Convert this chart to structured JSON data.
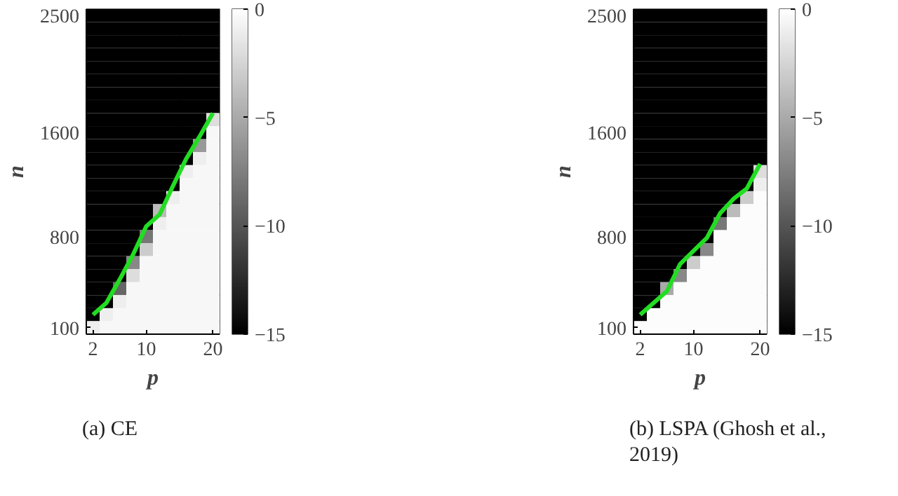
{
  "chart_data": [
    {
      "type": "heatmap",
      "xlabel": "p",
      "ylabel": "n",
      "annotations": [
        "(a) CE"
      ],
      "xlim": [
        1,
        21
      ],
      "xticks": [
        2,
        10,
        20
      ],
      "ylim": [
        50,
        2550
      ],
      "yticks": [
        100,
        800,
        1600,
        2500
      ],
      "clim": [
        -15,
        0
      ],
      "cticks": [
        0,
        -5,
        -10,
        -15
      ],
      "cells": [
        [
          -15,
          -15,
          -15,
          -15,
          -15,
          -15,
          -15,
          -15,
          -15,
          -15
        ],
        [
          -15,
          -15,
          -15,
          -15,
          -15,
          -15,
          -15,
          -15,
          -15,
          -15
        ],
        [
          -15,
          -15,
          -15,
          -15,
          -15,
          -15,
          -15,
          -15,
          -15,
          -15
        ],
        [
          -15,
          -15,
          -15,
          -15,
          -15,
          -15,
          -15,
          -15,
          -15,
          -15
        ],
        [
          -15,
          -15,
          -15,
          -15,
          -15,
          -15,
          -15,
          -15,
          -15,
          -15
        ],
        [
          -15,
          -15,
          -15,
          -15,
          -15,
          -15,
          -15,
          -15,
          -15,
          -15
        ],
        [
          -15,
          -15,
          -15,
          -15,
          -15,
          -15,
          -15,
          -15,
          -15,
          -15
        ],
        [
          -15,
          -15,
          -15,
          -15,
          -15,
          -15,
          -15,
          -15,
          -15,
          -15
        ],
        [
          -15,
          -15,
          -15,
          -15,
          -15,
          -15,
          -15,
          -15,
          -15,
          -2
        ],
        [
          -15,
          -15,
          -15,
          -15,
          -15,
          -15,
          -15,
          -15,
          -15,
          -0.5
        ],
        [
          -15,
          -15,
          -15,
          -15,
          -15,
          -15,
          -15,
          -15,
          -6,
          -0.5
        ],
        [
          -15,
          -15,
          -15,
          -15,
          -15,
          -15,
          -15,
          -15,
          -1,
          -0.5
        ],
        [
          -15,
          -15,
          -15,
          -15,
          -15,
          -15,
          -15,
          -1,
          -0.5,
          -0.5
        ],
        [
          -15,
          -15,
          -15,
          -15,
          -15,
          -15,
          -15,
          -0.5,
          -0.5,
          -0.5
        ],
        [
          -15,
          -15,
          -15,
          -15,
          -15,
          -15,
          -1,
          -0.5,
          -0.5,
          -0.5
        ],
        [
          -15,
          -15,
          -15,
          -15,
          -15,
          -4,
          -0.5,
          -0.5,
          -0.5,
          -0.5
        ],
        [
          -15,
          -15,
          -15,
          -15,
          -15,
          -1,
          -0.5,
          -0.5,
          -0.5,
          -0.5
        ],
        [
          -15,
          -15,
          -15,
          -15,
          -8,
          -0.5,
          -0.5,
          -0.5,
          -0.5,
          -0.5
        ],
        [
          -15,
          -15,
          -15,
          -15,
          -3,
          -0.5,
          -0.5,
          -0.5,
          -0.5,
          -0.5
        ],
        [
          -15,
          -15,
          -15,
          -7,
          -0.5,
          -0.5,
          -0.5,
          -0.5,
          -0.5,
          -0.5
        ],
        [
          -15,
          -15,
          -15,
          -2,
          -0.5,
          -0.5,
          -0.5,
          -0.5,
          -0.5,
          -0.5
        ],
        [
          -15,
          -15,
          -9,
          -0.5,
          -0.5,
          -0.5,
          -0.5,
          -0.5,
          -0.5,
          -0.5
        ],
        [
          -15,
          -15,
          -1,
          -0.5,
          -0.5,
          -0.5,
          -0.5,
          -0.5,
          -0.5,
          -0.5
        ],
        [
          -15,
          -1,
          -0.5,
          -0.5,
          -0.5,
          -0.5,
          -0.5,
          -0.5,
          -0.5,
          -0.5
        ],
        [
          -1,
          -0.5,
          -0.5,
          -0.5,
          -0.5,
          -0.5,
          -0.5,
          -0.5,
          -0.5,
          -0.5
        ]
      ],
      "series": [
        {
          "type": "line",
          "color": "#22dd22",
          "x": [
            2,
            4,
            6,
            8,
            10,
            12,
            14,
            16,
            18,
            20
          ],
          "values": [
            200,
            290,
            470,
            660,
            880,
            970,
            1190,
            1400,
            1570,
            1750
          ]
        }
      ]
    },
    {
      "type": "heatmap",
      "xlabel": "p",
      "ylabel": "n",
      "annotations": [
        "(b) LSPA (Ghosh et al., 2019)"
      ],
      "xlim": [
        1,
        21
      ],
      "xticks": [
        2,
        10,
        20
      ],
      "ylim": [
        50,
        2550
      ],
      "yticks": [
        100,
        800,
        1600,
        2500
      ],
      "clim": [
        -15,
        0
      ],
      "cticks": [
        0,
        -5,
        -10,
        -15
      ],
      "cells": [
        [
          -15,
          -15,
          -15,
          -15,
          -15,
          -15,
          -15,
          -15,
          -15,
          -15
        ],
        [
          -15,
          -15,
          -15,
          -15,
          -15,
          -15,
          -15,
          -15,
          -15,
          -15
        ],
        [
          -15,
          -15,
          -15,
          -15,
          -15,
          -15,
          -15,
          -15,
          -15,
          -15
        ],
        [
          -15,
          -15,
          -15,
          -15,
          -15,
          -15,
          -15,
          -15,
          -15,
          -15
        ],
        [
          -15,
          -15,
          -15,
          -15,
          -15,
          -15,
          -15,
          -15,
          -15,
          -15
        ],
        [
          -15,
          -15,
          -15,
          -15,
          -15,
          -15,
          -15,
          -15,
          -15,
          -15
        ],
        [
          -15,
          -15,
          -15,
          -15,
          -15,
          -15,
          -15,
          -15,
          -15,
          -15
        ],
        [
          -15,
          -15,
          -15,
          -15,
          -15,
          -15,
          -15,
          -15,
          -15,
          -15
        ],
        [
          -15,
          -15,
          -15,
          -15,
          -15,
          -15,
          -15,
          -15,
          -15,
          -15
        ],
        [
          -15,
          -15,
          -15,
          -15,
          -15,
          -15,
          -15,
          -15,
          -15,
          -15
        ],
        [
          -15,
          -15,
          -15,
          -15,
          -15,
          -15,
          -15,
          -15,
          -15,
          -15
        ],
        [
          -15,
          -15,
          -15,
          -15,
          -15,
          -15,
          -15,
          -15,
          -15,
          -15
        ],
        [
          -15,
          -15,
          -15,
          -15,
          -15,
          -15,
          -15,
          -15,
          -15,
          -2
        ],
        [
          -15,
          -15,
          -15,
          -15,
          -15,
          -15,
          -15,
          -15,
          -15,
          -1
        ],
        [
          -15,
          -15,
          -15,
          -15,
          -15,
          -15,
          -15,
          -15,
          -3,
          -0.2
        ],
        [
          -15,
          -15,
          -15,
          -15,
          -15,
          -15,
          -15,
          -4,
          -0.2,
          -0.2
        ],
        [
          -15,
          -15,
          -15,
          -15,
          -15,
          -15,
          -8,
          -0.2,
          -0.2,
          -0.2
        ],
        [
          -15,
          -15,
          -15,
          -15,
          -15,
          -15,
          -0.2,
          -0.2,
          -0.2,
          -0.2
        ],
        [
          -15,
          -15,
          -15,
          -15,
          -15,
          -7,
          -0.2,
          -0.2,
          -0.2,
          -0.2
        ],
        [
          -15,
          -15,
          -15,
          -15,
          -3,
          -0.2,
          -0.2,
          -0.2,
          -0.2,
          -0.2
        ],
        [
          -15,
          -15,
          -15,
          -7,
          -0.2,
          -0.2,
          -0.2,
          -0.2,
          -0.2,
          -0.2
        ],
        [
          -15,
          -15,
          -5,
          -0.2,
          -0.2,
          -0.2,
          -0.2,
          -0.2,
          -0.2,
          -0.2
        ],
        [
          -15,
          -15,
          -0.2,
          -0.2,
          -0.2,
          -0.2,
          -0.2,
          -0.2,
          -0.2,
          -0.2
        ],
        [
          -15,
          -0.2,
          -0.2,
          -0.2,
          -0.2,
          -0.2,
          -0.2,
          -0.2,
          -0.2,
          -0.2
        ],
        [
          -0.2,
          -0.2,
          -0.2,
          -0.2,
          -0.2,
          -0.2,
          -0.2,
          -0.2,
          -0.2,
          -0.2
        ]
      ],
      "series": [
        {
          "type": "line",
          "color": "#22dd22",
          "x": [
            2,
            4,
            6,
            8,
            10,
            12,
            14,
            16,
            18,
            20
          ],
          "values": [
            200,
            290,
            380,
            590,
            690,
            790,
            980,
            1090,
            1170,
            1360
          ]
        }
      ]
    }
  ]
}
